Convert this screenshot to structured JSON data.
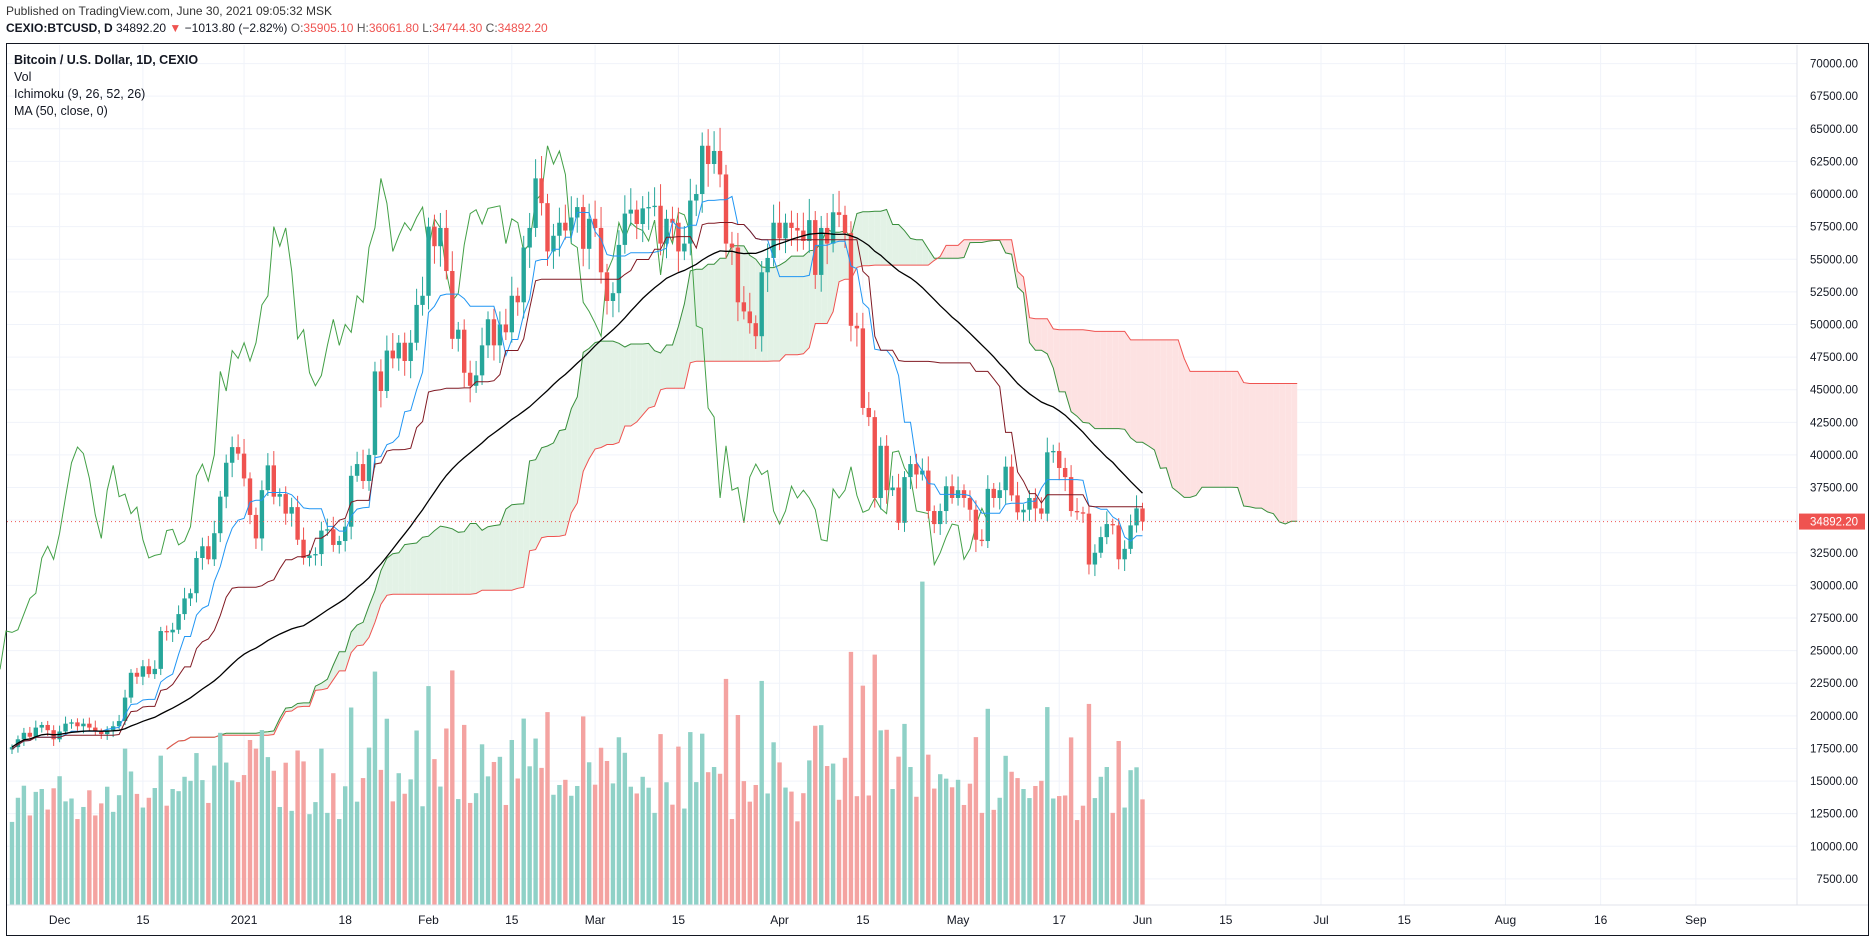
{
  "header": {
    "published": "Published on TradingView.com, June 30, 2021 09:05:32 MSK",
    "symbol": "CEXIO:BTCUSD, D",
    "last": "34892.20",
    "change_arrow": "▼",
    "change": "−1013.80 (−2.82%)",
    "o_label": "O:",
    "o": "35905.10",
    "h_label": "H:",
    "h": "36061.80",
    "l_label": "L:",
    "l": "34744.30",
    "c_label": "C:",
    "c": "34892.20"
  },
  "legend": {
    "title": "Bitcoin / U.S. Dollar, 1D, CEXIO",
    "vol": "Vol",
    "ichimoku": "Ichimoku (9, 26, 52, 26)",
    "ma": "MA (50, close, 0)"
  },
  "chart_data": {
    "type": "candlestick",
    "interval": "1D",
    "y_axis_ticks": [
      7500,
      10000,
      12500,
      15000,
      17500,
      20000,
      22500,
      25000,
      27500,
      30000,
      32500,
      35000,
      37500,
      40000,
      42500,
      45000,
      47500,
      50000,
      52500,
      55000,
      57500,
      60000,
      62500,
      65000,
      67500,
      70000
    ],
    "y_axis_labels": [
      "7500.00",
      "10000.00",
      "12500.00",
      "15000.00",
      "17500.00",
      "20000.00",
      "22500.00",
      "25000.00",
      "27500.00",
      "30000.00",
      "32500.00",
      "35000.00",
      "37500.00",
      "40000.00",
      "42500.00",
      "45000.00",
      "47500.00",
      "50000.00",
      "52500.00",
      "55000.00",
      "57500.00",
      "60000.00",
      "62500.00",
      "65000.00",
      "67500.00",
      "70000.00"
    ],
    "ylim": [
      5500,
      71500
    ],
    "x_axis_labels": [
      {
        "label": "Dec",
        "day": 8
      },
      {
        "label": "15",
        "day": 22
      },
      {
        "label": "2021",
        "day": 39
      },
      {
        "label": "18",
        "day": 56
      },
      {
        "label": "Feb",
        "day": 70
      },
      {
        "label": "15",
        "day": 84
      },
      {
        "label": "Mar",
        "day": 98
      },
      {
        "label": "15",
        "day": 112
      },
      {
        "label": "Apr",
        "day": 129
      },
      {
        "label": "15",
        "day": 143
      },
      {
        "label": "May",
        "day": 159
      },
      {
        "label": "17",
        "day": 176
      },
      {
        "label": "Jun",
        "day": 190
      },
      {
        "label": "15",
        "day": 204
      },
      {
        "label": "Jul",
        "day": 220
      },
      {
        "label": "15",
        "day": 234
      },
      {
        "label": "Aug",
        "day": 251
      },
      {
        "label": "16",
        "day": 267
      },
      {
        "label": "Sep",
        "day": 283
      }
    ],
    "last_price": 34892.2,
    "last_price_label": "34892.20",
    "close": [
      17600,
      18200,
      18700,
      18400,
      19100,
      19300,
      18900,
      18200,
      18800,
      19400,
      19500,
      19200,
      19400,
      19100,
      18800,
      18600,
      18900,
      19200,
      19600,
      21400,
      23300,
      23000,
      23800,
      23200,
      23600,
      26500,
      26400,
      26600,
      27800,
      29000,
      29400,
      32100,
      33000,
      32000,
      34000,
      36800,
      39400,
      40600,
      40100,
      38200,
      35400,
      33600,
      37300,
      39200,
      36800,
      37000,
      35500,
      36000,
      33500,
      32100,
      32300,
      32400,
      34200,
      34300,
      33100,
      33400,
      34500,
      38400,
      39300,
      38000,
      40000,
      46400,
      44900,
      48000,
      47400,
      48600,
      47200,
      48600,
      51500,
      52200,
      57500,
      56000,
      57400,
      54100,
      48900,
      49600,
      46300,
      45300,
      46100,
      48400,
      50400,
      48400,
      50000,
      49400,
      52200,
      51700,
      55900,
      57400,
      61200,
      59300,
      55600,
      56800,
      57800,
      57200,
      58200,
      59000,
      55800,
      58100,
      57400,
      54000,
      51800,
      52400,
      56100,
      58500,
      58800,
      57700,
      58900,
      59000,
      59100,
      56200,
      58100,
      57800,
      55600,
      56200,
      59500,
      60000,
      63700,
      62300,
      63300,
      61500,
      56200,
      55900,
      51700,
      51000,
      50100,
      49100,
      54000,
      55100,
      57800,
      56600,
      57800,
      57400,
      57200,
      56400,
      58000,
      53800,
      57400,
      56200,
      58600,
      58400,
      57000,
      49900,
      49700,
      43600,
      42900,
      36700,
      40700,
      37300,
      37500,
      34800,
      38300,
      39300,
      38500,
      38800,
      35700,
      34700,
      35700,
      37600,
      36700,
      37300,
      36700,
      35800,
      33500,
      33400,
      37400,
      36700,
      37300,
      39100,
      36900,
      35600,
      35800,
      36700,
      35900,
      35500,
      40200,
      40300,
      39000,
      38300,
      35700,
      35600,
      35500,
      31600,
      32500,
      33700,
      34700,
      34600,
      32000,
      32800,
      34600,
      35900,
      34900
    ],
    "volume_max": 22500,
    "series_colors": {
      "up": "#26a69a",
      "down": "#ef5350",
      "volume_up": "#8fd1c7",
      "volume_down": "#f4a3a1",
      "tenkan": "#2196f3",
      "kijun": "#801922",
      "chikou": "#43a047",
      "span_a": "#388e3c",
      "span_b": "#ef5350",
      "cloud_bull": "#e3f2e6",
      "cloud_bear": "#fde2e2",
      "ma": "#000000"
    }
  }
}
